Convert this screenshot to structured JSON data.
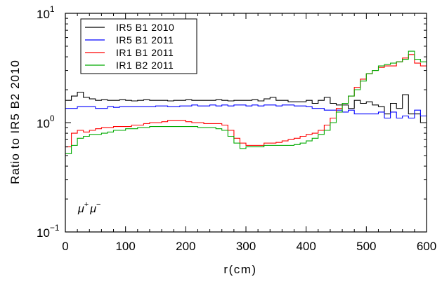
{
  "chart_data": {
    "type": "line",
    "step": true,
    "title": "",
    "xlabel": "r(cm)",
    "ylabel": "Ratio to IR5 B2 2010",
    "xlim": [
      0,
      600
    ],
    "ylim": [
      0.1,
      10
    ],
    "yscale": "log",
    "x_ticks": [
      0,
      100,
      200,
      300,
      400,
      500,
      600
    ],
    "x_tick_labels": [
      "0",
      "100",
      "200",
      "300",
      "400",
      "500",
      "600"
    ],
    "y_ticks": [
      0.1,
      1,
      10
    ],
    "y_tick_labels": [
      {
        "base": "10",
        "exp": "−1"
      },
      {
        "base": "10",
        "exp": "0"
      },
      {
        "base": "10",
        "exp": "1"
      }
    ],
    "annotation": {
      "mu1": "μ",
      "sup1": "+",
      "mu2": "μ",
      "sup2": "−"
    },
    "legend_position": "top-left",
    "bin_width": 5,
    "series": [
      {
        "name": "IR5 B1 2010",
        "color": "#000000",
        "x": [
          5,
          15,
          25,
          35,
          45,
          55,
          65,
          75,
          85,
          95,
          105,
          115,
          125,
          135,
          145,
          155,
          165,
          175,
          185,
          195,
          205,
          215,
          225,
          235,
          245,
          255,
          265,
          275,
          285,
          295,
          305,
          315,
          325,
          335,
          345,
          355,
          365,
          375,
          385,
          395,
          405,
          415,
          425,
          435,
          445,
          455,
          465,
          475,
          485,
          495,
          505,
          515,
          525,
          535,
          545,
          555,
          565,
          575,
          585,
          595
        ],
        "y": [
          1.6,
          1.75,
          1.9,
          1.7,
          1.65,
          1.6,
          1.62,
          1.6,
          1.6,
          1.62,
          1.6,
          1.58,
          1.6,
          1.62,
          1.6,
          1.6,
          1.6,
          1.58,
          1.6,
          1.6,
          1.62,
          1.6,
          1.6,
          1.6,
          1.6,
          1.62,
          1.6,
          1.58,
          1.6,
          1.6,
          1.6,
          1.62,
          1.58,
          1.65,
          1.7,
          1.6,
          1.6,
          1.55,
          1.55,
          1.55,
          1.6,
          1.5,
          1.6,
          1.7,
          1.5,
          1.45,
          1.45,
          1.35,
          1.6,
          1.5,
          1.55,
          1.45,
          1.4,
          1.2,
          1.5,
          1.35,
          1.8,
          1.2,
          1.2,
          1.0
        ]
      },
      {
        "name": "IR5 B1 2011",
        "color": "#0000ff",
        "x": [
          5,
          15,
          25,
          35,
          45,
          55,
          65,
          75,
          85,
          95,
          105,
          115,
          125,
          135,
          145,
          155,
          165,
          175,
          185,
          195,
          205,
          215,
          225,
          235,
          245,
          255,
          265,
          275,
          285,
          295,
          305,
          315,
          325,
          335,
          345,
          355,
          365,
          375,
          385,
          395,
          405,
          415,
          425,
          435,
          445,
          455,
          465,
          475,
          485,
          495,
          505,
          515,
          525,
          535,
          545,
          555,
          565,
          575,
          585,
          595
        ],
        "y": [
          1.35,
          1.35,
          1.4,
          1.4,
          1.4,
          1.35,
          1.35,
          1.4,
          1.38,
          1.4,
          1.4,
          1.4,
          1.4,
          1.4,
          1.4,
          1.42,
          1.42,
          1.4,
          1.4,
          1.42,
          1.42,
          1.45,
          1.42,
          1.42,
          1.45,
          1.42,
          1.45,
          1.42,
          1.45,
          1.45,
          1.42,
          1.45,
          1.42,
          1.45,
          1.45,
          1.42,
          1.45,
          1.45,
          1.42,
          1.42,
          1.4,
          1.35,
          1.35,
          1.3,
          1.3,
          1.3,
          1.25,
          1.3,
          1.2,
          1.2,
          1.2,
          1.2,
          1.25,
          1.1,
          1.25,
          1.1,
          1.15,
          1.1,
          1.3,
          1.15
        ]
      },
      {
        "name": "IR1 B1 2011",
        "color": "#ff0000",
        "x": [
          5,
          15,
          25,
          35,
          45,
          55,
          65,
          75,
          85,
          95,
          105,
          115,
          125,
          135,
          145,
          155,
          165,
          175,
          185,
          195,
          205,
          215,
          225,
          235,
          245,
          255,
          265,
          275,
          285,
          295,
          305,
          315,
          325,
          335,
          345,
          355,
          365,
          375,
          385,
          395,
          405,
          415,
          425,
          435,
          445,
          455,
          465,
          475,
          485,
          495,
          505,
          515,
          525,
          535,
          545,
          555,
          565,
          575,
          585,
          595
        ],
        "y": [
          0.6,
          0.8,
          0.85,
          0.82,
          0.85,
          0.88,
          0.9,
          0.9,
          0.92,
          0.92,
          0.92,
          0.95,
          0.95,
          0.98,
          1.0,
          1.0,
          1.02,
          1.05,
          1.05,
          1.05,
          1.02,
          1.0,
          1.0,
          0.98,
          0.98,
          0.98,
          0.95,
          0.85,
          0.72,
          0.65,
          0.62,
          0.62,
          0.62,
          0.65,
          0.65,
          0.66,
          0.68,
          0.7,
          0.72,
          0.75,
          0.78,
          0.8,
          0.85,
          0.95,
          1.1,
          1.35,
          1.5,
          1.75,
          2.1,
          2.5,
          2.8,
          3.0,
          3.2,
          3.3,
          3.3,
          3.6,
          3.9,
          4.2,
          3.5,
          3.3
        ]
      },
      {
        "name": "IR1 B2 2011",
        "color": "#00aa00",
        "x": [
          5,
          15,
          25,
          35,
          45,
          55,
          65,
          75,
          85,
          95,
          105,
          115,
          125,
          135,
          145,
          155,
          165,
          175,
          185,
          195,
          205,
          215,
          225,
          235,
          245,
          255,
          265,
          275,
          285,
          295,
          305,
          315,
          325,
          335,
          345,
          355,
          365,
          375,
          385,
          395,
          405,
          415,
          425,
          435,
          445,
          455,
          465,
          475,
          485,
          495,
          505,
          515,
          525,
          535,
          545,
          555,
          565,
          575,
          585,
          595
        ],
        "y": [
          0.52,
          0.62,
          0.72,
          0.75,
          0.78,
          0.78,
          0.8,
          0.82,
          0.85,
          0.85,
          0.88,
          0.88,
          0.9,
          0.9,
          0.92,
          0.92,
          0.92,
          0.92,
          0.92,
          0.92,
          0.92,
          0.92,
          0.9,
          0.9,
          0.9,
          0.88,
          0.85,
          0.75,
          0.65,
          0.58,
          0.6,
          0.6,
          0.6,
          0.62,
          0.62,
          0.62,
          0.62,
          0.62,
          0.63,
          0.65,
          0.68,
          0.72,
          0.78,
          0.85,
          1.0,
          1.25,
          1.5,
          1.75,
          2.0,
          2.4,
          2.8,
          3.0,
          3.3,
          3.4,
          3.5,
          3.6,
          3.8,
          4.5,
          3.8,
          3.6
        ]
      }
    ]
  }
}
